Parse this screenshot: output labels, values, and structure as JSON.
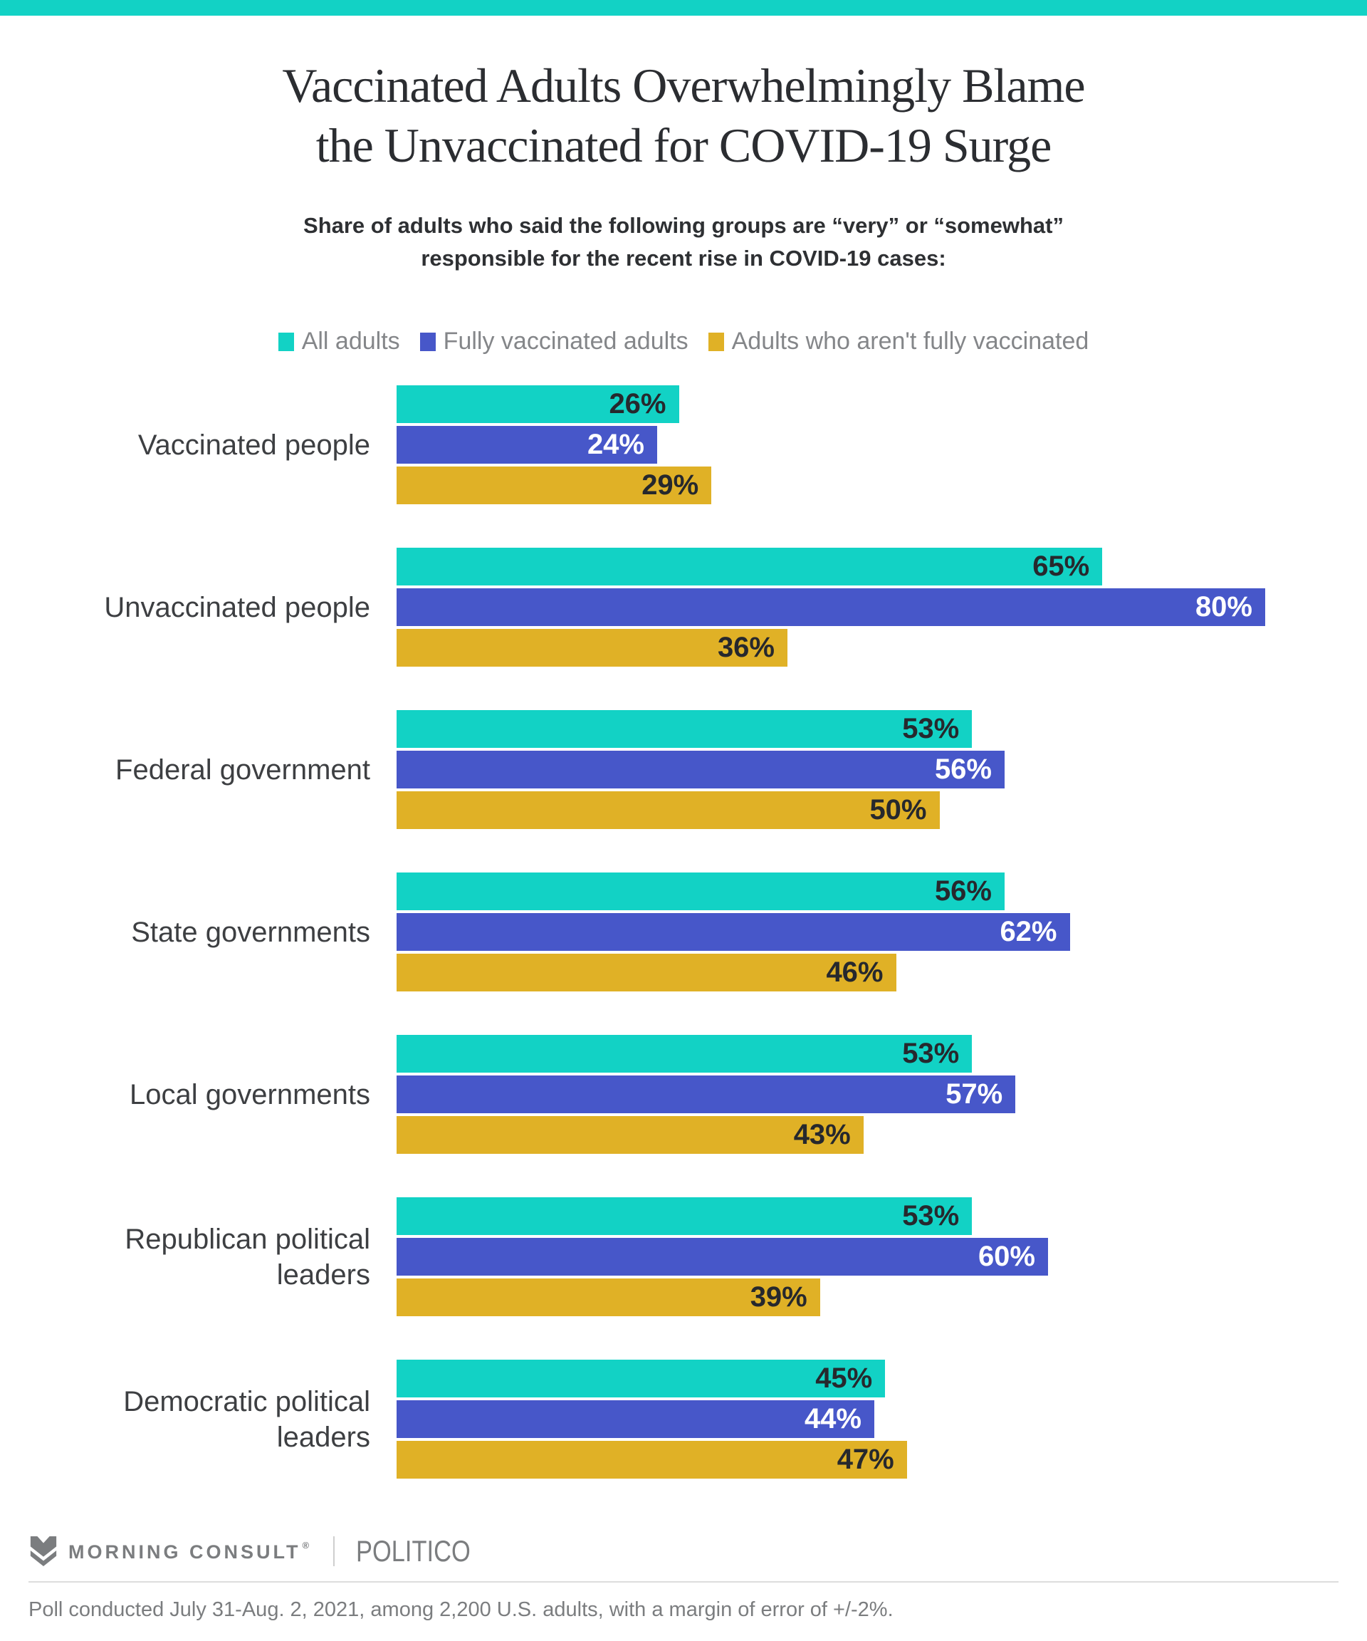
{
  "banner_color": "#12d2c5",
  "title": {
    "line1": "Vaccinated Adults Overwhelmingly Blame",
    "line2": "the Unvaccinated for COVID-19 Surge"
  },
  "subtitle": {
    "line1": "Share of adults who said the following groups are “very” or “somewhat”",
    "line2": "responsible for the recent rise in COVID-19 cases:"
  },
  "legend": {
    "0": {
      "label": "All adults",
      "color": "#12d2c5"
    },
    "1": {
      "label": "Fully vaccinated adults",
      "color": "#4757c9"
    },
    "2": {
      "label": "Adults who aren't fully vaccinated",
      "color": "#e0b126"
    }
  },
  "chart_data": {
    "type": "bar",
    "orientation": "horizontal",
    "unit": "%",
    "xlim": [
      0,
      80
    ],
    "grid": false,
    "value_labels": "inside-end",
    "categories": [
      "Vaccinated people",
      "Unvaccinated people",
      "Federal government",
      "State governments",
      "Local governments",
      "Republican political leaders",
      "Democratic political leaders"
    ],
    "series": [
      {
        "name": "All adults",
        "color": "#12d2c5",
        "value_label_color": "#26282d",
        "values": [
          26,
          65,
          53,
          56,
          53,
          53,
          45
        ]
      },
      {
        "name": "Fully vaccinated adults",
        "color": "#4757c9",
        "value_label_color": "#ffffff",
        "values": [
          24,
          80,
          56,
          62,
          57,
          60,
          44
        ]
      },
      {
        "name": "Adults who aren't fully vaccinated",
        "color": "#e0b126",
        "value_label_color": "#26282d",
        "values": [
          29,
          36,
          50,
          46,
          43,
          39,
          47
        ]
      }
    ],
    "title": "Vaccinated Adults Overwhelmingly Blame the Unvaccinated for COVID-19 Surge",
    "legend_position": "top"
  },
  "footer": {
    "brand1": "MORNING CONSULT",
    "brand1_reg_mark": "®",
    "brand1_icon": "morning-consult-m-logo",
    "brand2": "POLITICO",
    "footnote": "Poll conducted July 31-Aug. 2, 2021, among 2,200 U.S. adults, with a margin of error of +/-2%."
  }
}
